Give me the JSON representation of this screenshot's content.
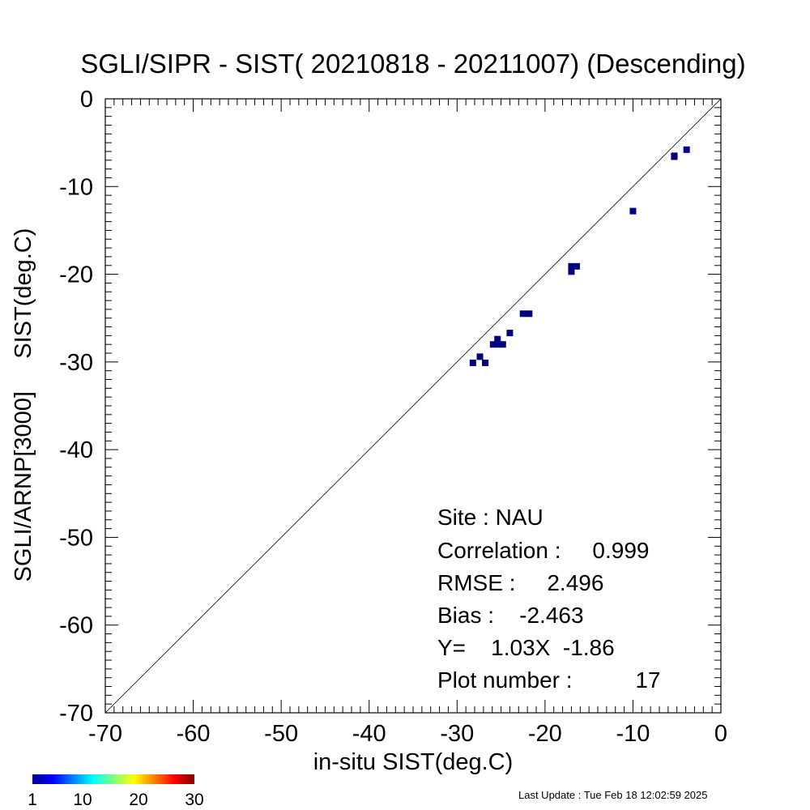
{
  "chart_data": {
    "type": "scatter",
    "title": "SGLI/SIPR - SIST( 20210818 - 20211007) (Descending)",
    "xlabel": "in-situ SIST(deg.C)",
    "ylabel": "SGLI/ARNP[3000]     SIST(deg.C)",
    "xlim": [
      -70,
      0
    ],
    "ylim": [
      -70,
      0
    ],
    "x_ticks": [
      "-70",
      "-60",
      "-50",
      "-40",
      "-30",
      "-20",
      "-10",
      "0"
    ],
    "y_ticks": [
      "-70",
      "-60",
      "-50",
      "-40",
      "-30",
      "-20",
      "-10",
      "0"
    ],
    "reference_line": "y = x",
    "grid": false,
    "marker_color": "#000080",
    "points": [
      {
        "x": -28.2,
        "y": -30.1
      },
      {
        "x": -27.4,
        "y": -29.4
      },
      {
        "x": -26.8,
        "y": -30.1
      },
      {
        "x": -25.9,
        "y": -28.0
      },
      {
        "x": -25.3,
        "y": -28.0
      },
      {
        "x": -25.4,
        "y": -27.4
      },
      {
        "x": -24.8,
        "y": -28.0
      },
      {
        "x": -24.0,
        "y": -26.7
      },
      {
        "x": -22.5,
        "y": -24.5
      },
      {
        "x": -21.8,
        "y": -24.5
      },
      {
        "x": -17.0,
        "y": -19.7
      },
      {
        "x": -17.0,
        "y": -19.1
      },
      {
        "x": -16.4,
        "y": -19.1
      },
      {
        "x": -10.0,
        "y": -12.8
      },
      {
        "x": -5.3,
        "y": -6.5
      },
      {
        "x": -3.9,
        "y": -5.8
      },
      {
        "x": -5.3,
        "y": -6.6
      }
    ],
    "stats": {
      "site": "Site : NAU",
      "correlation": "Correlation :     0.999",
      "rmse": "RMSE :     2.496",
      "bias": "Bias :    -2.463",
      "regression": "Y=    1.03X  -1.86",
      "plot_number": "Plot number :          17"
    },
    "colorbar": {
      "ticks": [
        "1",
        "10",
        "20",
        "30"
      ],
      "range": [
        1,
        30
      ],
      "colormap": "jet"
    }
  },
  "footer": {
    "last_update": "Last Update : Tue Feb 18 12:02:59 2025"
  }
}
